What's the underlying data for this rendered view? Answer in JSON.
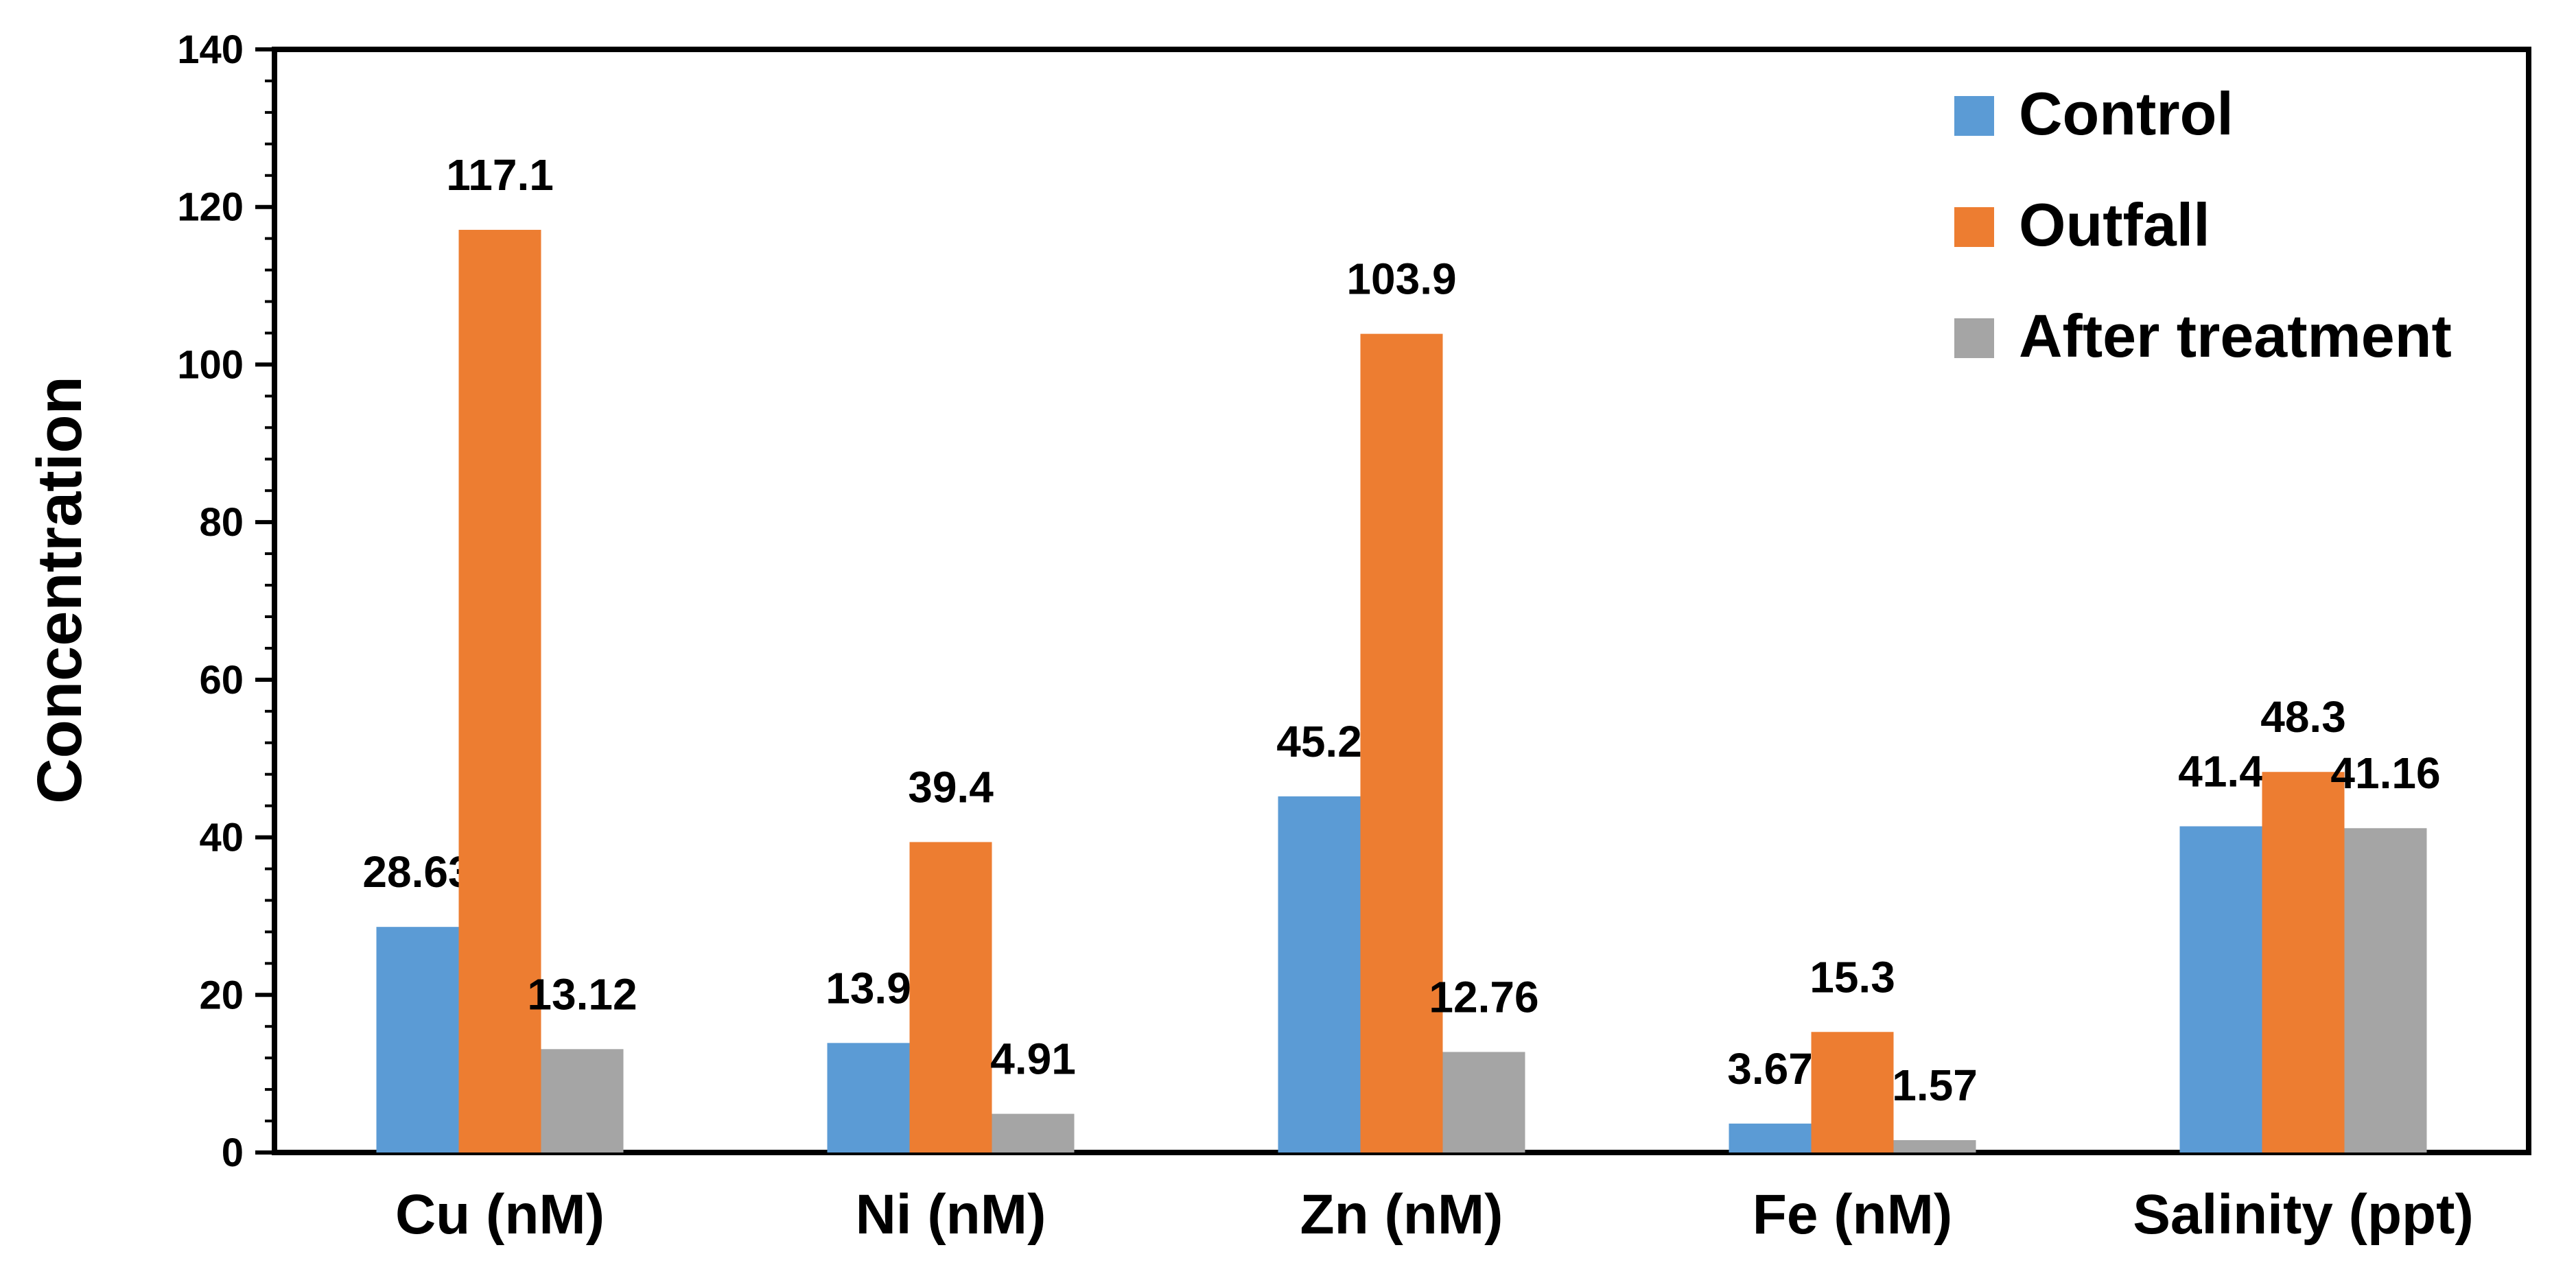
{
  "chart_data": {
    "type": "bar",
    "categories": [
      "Cu (nM)",
      "Ni (nM)",
      "Zn (nM)",
      "Fe (nM)",
      "Salinity (ppt)"
    ],
    "series": [
      {
        "name": "Control",
        "values": [
          28.63,
          13.9,
          45.2,
          3.67,
          41.4
        ],
        "labels": [
          "28.63",
          "13.9",
          "45.2",
          "3.67",
          "41.4"
        ],
        "color": "#5B9BD5"
      },
      {
        "name": "Outfall",
        "values": [
          117.1,
          39.4,
          103.9,
          15.3,
          48.3
        ],
        "labels": [
          "117.1",
          "39.4",
          "103.9",
          "15.3",
          "48.3"
        ],
        "color": "#ED7D31"
      },
      {
        "name": "After treatment",
        "values": [
          13.12,
          4.91,
          12.76,
          1.57,
          41.16
        ],
        "labels": [
          "13.12",
          "4.91",
          "12.76",
          "1.57",
          "41.16"
        ],
        "color": "#A5A5A5"
      }
    ],
    "ylabel": "Concentration",
    "xlabel": "",
    "ylim": [
      0,
      140
    ],
    "yticks": [
      0,
      20,
      40,
      60,
      80,
      100,
      120,
      140
    ],
    "grid": false,
    "legend_position": "top-right"
  }
}
